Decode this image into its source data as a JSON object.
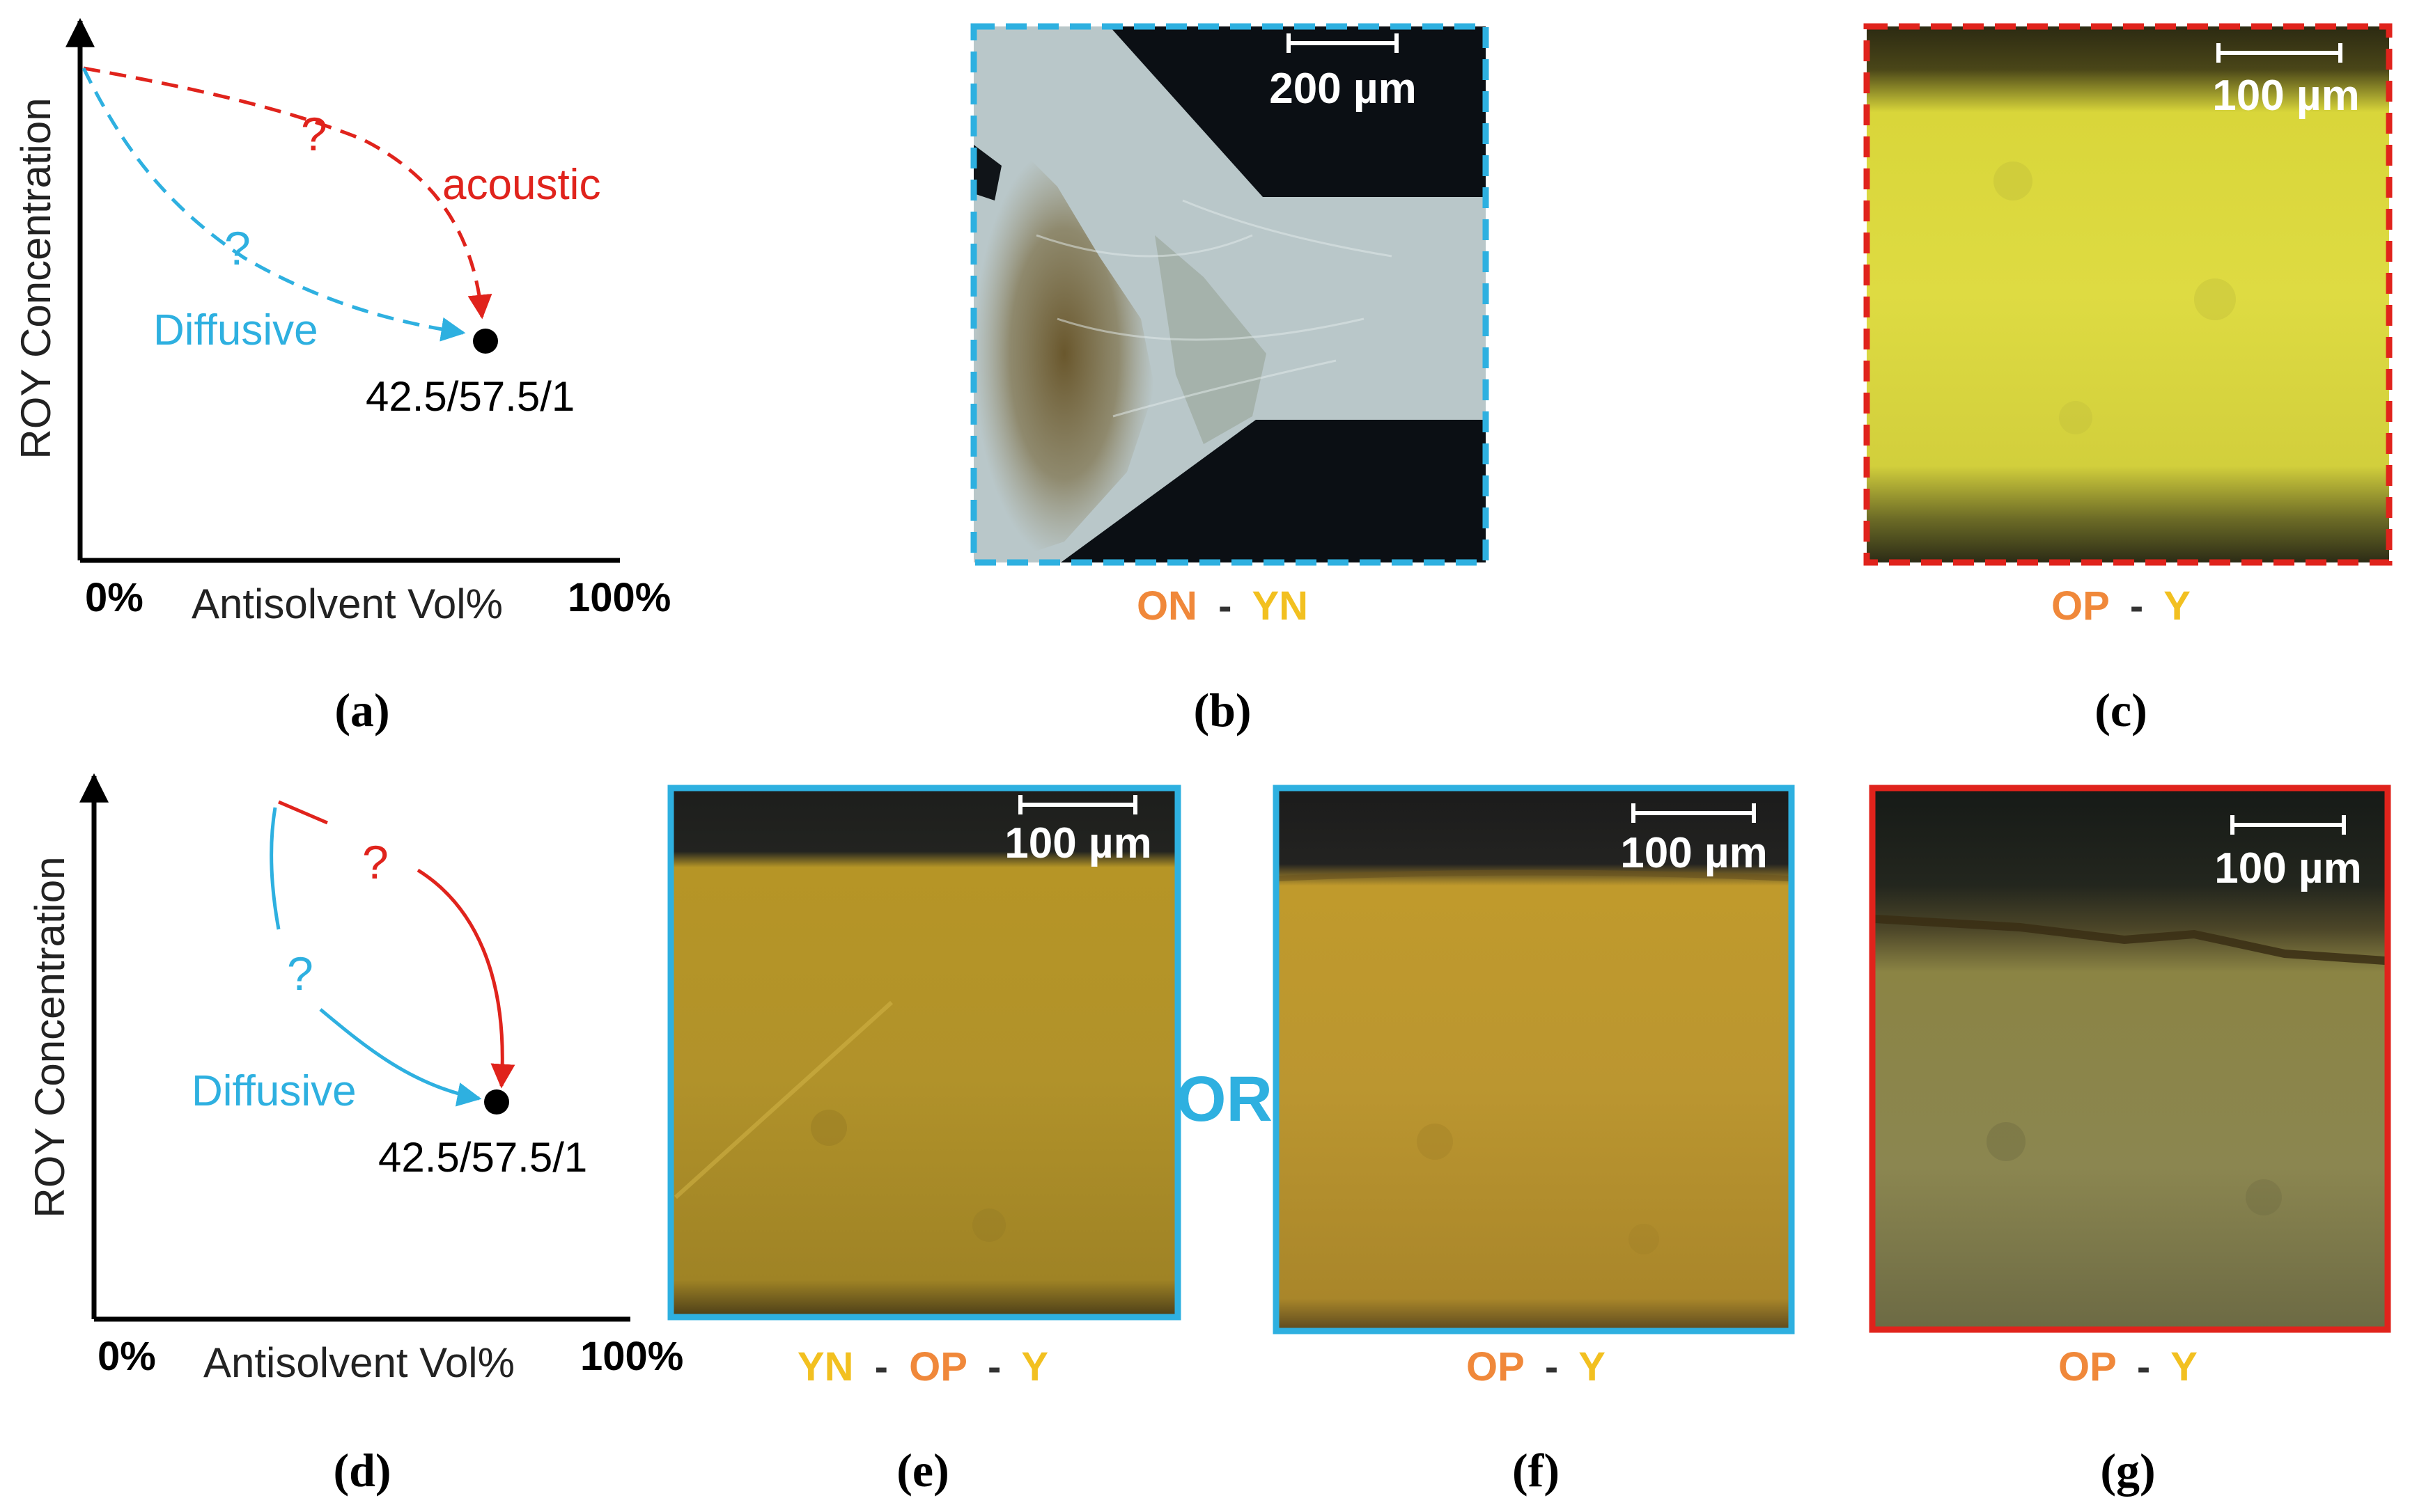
{
  "colors": {
    "acoustic_red": "#e0231c",
    "diffusive_blue": "#2eb0e0",
    "phase_orange": "#f0883a",
    "phase_yellow": "#f2c020",
    "separator_gray": "#333333"
  },
  "panels": {
    "a": {
      "letter": "(a)",
      "y_label": "ROY Concentration",
      "x_label": "Antisolvent Vol%",
      "x_start": "0%",
      "x_end": "100%",
      "q_acoustic": "?",
      "q_diffusive": "?",
      "acoustic_label": "acoustic",
      "diffusive_label": "Diffusive",
      "point_label": "42.5/57.5/1"
    },
    "b": {
      "letter": "(b)",
      "scale_bar": "200 µm",
      "phase": [
        "ON",
        "-",
        "YN"
      ],
      "border": "blue-dashed"
    },
    "c": {
      "letter": "(c)",
      "scale_bar": "100 µm",
      "phase": [
        "OP",
        "-",
        "Y"
      ],
      "border": "red-dashed"
    },
    "d": {
      "letter": "(d)",
      "y_label": "ROY Concentration",
      "x_label": "Antisolvent Vol%",
      "x_start": "0%",
      "x_end": "100%",
      "q_acoustic": "?",
      "q_diffusive": "?",
      "diffusive_label": "Diffusive",
      "point_label": "42.5/57.5/1"
    },
    "e": {
      "letter": "(e)",
      "scale_bar": "100 µm",
      "phase": [
        "YN",
        "-",
        "OP",
        "-",
        "Y"
      ],
      "border": "blue-solid"
    },
    "or_label": "OR",
    "f": {
      "letter": "(f)",
      "scale_bar": "100 µm",
      "phase": [
        "OP",
        "-",
        "Y"
      ],
      "border": "blue-solid"
    },
    "g": {
      "letter": "(g)",
      "scale_bar": "100 µm",
      "phase": [
        "OP",
        "-",
        "Y"
      ],
      "border": "red-solid"
    }
  }
}
